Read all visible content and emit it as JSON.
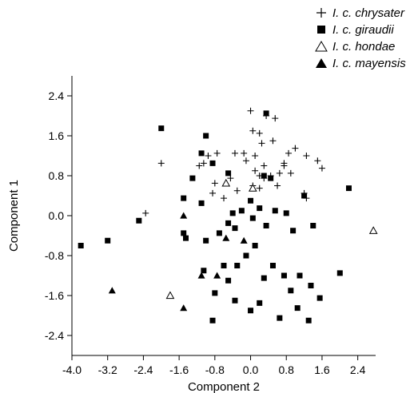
{
  "chart_data": {
    "type": "scatter",
    "xlabel": "Component 2",
    "ylabel": "Component 1",
    "xlim": [
      -4.0,
      2.8
    ],
    "ylim": [
      -2.8,
      2.8
    ],
    "x_ticks": [
      -4.0,
      -3.2,
      -2.4,
      -1.6,
      -0.8,
      0.0,
      0.8,
      1.6,
      2.4
    ],
    "x_tick_labels": [
      "-4.0",
      "-3.2",
      "-2.4",
      "-1.6",
      "-0.8",
      "0.0",
      "0.8",
      "1.6",
      "2.4"
    ],
    "y_ticks": [
      2.4,
      1.6,
      0.8,
      0.0,
      -0.8,
      -1.6,
      -2.4
    ],
    "y_tick_labels": [
      "2.4",
      "1.6",
      "0.8",
      "0.0",
      "-0.8",
      "-1.6",
      "-2.4"
    ],
    "legend_position": "top-right",
    "series": [
      {
        "name": "I. c. chrysater",
        "marker": "plus",
        "points": [
          [
            -2.0,
            1.05
          ],
          [
            -2.35,
            0.05
          ],
          [
            -1.15,
            1.0
          ],
          [
            -1.05,
            1.05
          ],
          [
            -0.95,
            1.2
          ],
          [
            -0.75,
            1.25
          ],
          [
            -0.35,
            1.25
          ],
          [
            -0.15,
            1.25
          ],
          [
            -0.85,
            0.45
          ],
          [
            -0.8,
            0.65
          ],
          [
            -0.6,
            0.35
          ],
          [
            -0.45,
            0.75
          ],
          [
            -0.3,
            0.5
          ],
          [
            -0.1,
            1.1
          ],
          [
            0.1,
            1.2
          ],
          [
            0.3,
            1.0
          ],
          [
            0.2,
            0.8
          ],
          [
            0.45,
            0.8
          ],
          [
            0.65,
            0.85
          ],
          [
            0.85,
            1.25
          ],
          [
            1.0,
            1.35
          ],
          [
            1.25,
            1.2
          ],
          [
            1.6,
            0.95
          ],
          [
            1.5,
            1.1
          ],
          [
            0.0,
            2.1
          ],
          [
            0.35,
            2.0
          ],
          [
            0.55,
            1.95
          ],
          [
            0.05,
            1.7
          ],
          [
            0.2,
            1.65
          ],
          [
            0.5,
            1.5
          ],
          [
            0.25,
            1.45
          ],
          [
            0.1,
            0.9
          ],
          [
            0.3,
            0.75
          ],
          [
            0.6,
            0.6
          ],
          [
            0.75,
            1.05
          ],
          [
            0.05,
            0.6
          ],
          [
            0.2,
            0.55
          ],
          [
            1.2,
            0.45
          ],
          [
            1.25,
            0.35
          ],
          [
            0.9,
            0.85
          ],
          [
            0.75,
            1.0
          ]
        ]
      },
      {
        "name": "I. c. giraudii",
        "marker": "square",
        "points": [
          [
            -3.8,
            -0.6
          ],
          [
            -3.2,
            -0.5
          ],
          [
            -2.5,
            -0.1
          ],
          [
            -2.0,
            1.75
          ],
          [
            -1.3,
            0.75
          ],
          [
            -1.0,
            1.6
          ],
          [
            -1.1,
            1.25
          ],
          [
            -0.85,
            1.05
          ],
          [
            -0.5,
            0.85
          ],
          [
            -1.5,
            -0.35
          ],
          [
            -1.45,
            -0.45
          ],
          [
            -1.5,
            0.35
          ],
          [
            -1.1,
            0.25
          ],
          [
            -1.0,
            -0.5
          ],
          [
            -0.7,
            -0.35
          ],
          [
            -0.5,
            -0.15
          ],
          [
            -0.4,
            0.05
          ],
          [
            -0.35,
            -0.25
          ],
          [
            -0.2,
            0.1
          ],
          [
            0.0,
            0.3
          ],
          [
            0.05,
            -0.05
          ],
          [
            0.2,
            0.15
          ],
          [
            0.35,
            -0.2
          ],
          [
            0.55,
            0.1
          ],
          [
            0.8,
            0.05
          ],
          [
            0.95,
            -0.3
          ],
          [
            1.2,
            0.4
          ],
          [
            1.4,
            -0.2
          ],
          [
            -0.8,
            -1.55
          ],
          [
            -0.5,
            -1.3
          ],
          [
            -0.3,
            -1.0
          ],
          [
            -0.1,
            -0.8
          ],
          [
            0.1,
            -0.6
          ],
          [
            0.3,
            -1.25
          ],
          [
            0.5,
            -1.0
          ],
          [
            0.75,
            -1.2
          ],
          [
            0.9,
            -1.5
          ],
          [
            1.1,
            -1.2
          ],
          [
            1.35,
            -1.4
          ],
          [
            1.55,
            -1.65
          ],
          [
            -0.85,
            -2.1
          ],
          [
            -0.35,
            -1.7
          ],
          [
            0.0,
            -1.9
          ],
          [
            0.2,
            -1.75
          ],
          [
            0.65,
            -2.05
          ],
          [
            1.05,
            -1.85
          ],
          [
            1.3,
            -2.1
          ],
          [
            2.2,
            0.55
          ],
          [
            2.0,
            -1.15
          ],
          [
            0.3,
            0.8
          ],
          [
            0.35,
            2.05
          ],
          [
            0.45,
            0.75
          ],
          [
            -1.05,
            -1.1
          ],
          [
            -0.6,
            -1.0
          ]
        ]
      },
      {
        "name": "I. c. hondae",
        "marker": "triangle-open",
        "points": [
          [
            -1.8,
            -1.6
          ],
          [
            -0.55,
            0.65
          ],
          [
            0.05,
            0.55
          ],
          [
            2.75,
            -0.3
          ]
        ]
      },
      {
        "name": "I. c. mayensis",
        "marker": "triangle-filled",
        "points": [
          [
            -3.1,
            -1.5
          ],
          [
            -1.5,
            0.0
          ],
          [
            -1.5,
            -1.85
          ],
          [
            -1.1,
            -1.2
          ],
          [
            -0.75,
            -1.2
          ],
          [
            -0.55,
            -0.45
          ],
          [
            -0.15,
            -0.5
          ]
        ]
      }
    ]
  }
}
